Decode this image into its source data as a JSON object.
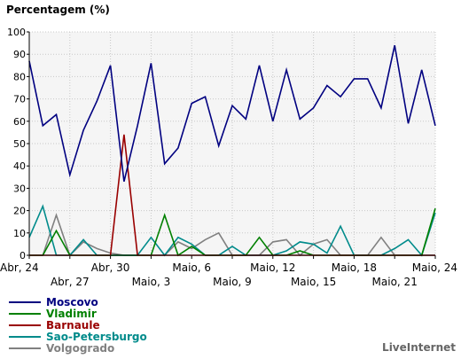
{
  "chart_data": {
    "type": "line",
    "title": "Percentagem (%)",
    "xlabel": "",
    "ylabel": "",
    "ylim": [
      0,
      100
    ],
    "yticks": [
      0,
      10,
      20,
      30,
      40,
      50,
      60,
      70,
      80,
      90,
      100
    ],
    "grid": true,
    "legend_position": "bottom-left",
    "x": [
      "Abr, 24",
      "Abr, 25",
      "Abr, 26",
      "Abr, 27",
      "Abr, 28",
      "Abr, 29",
      "Abr, 30",
      "Maio, 1",
      "Maio, 2",
      "Maio, 3",
      "Maio, 4",
      "Maio, 5",
      "Maio, 6",
      "Maio, 7",
      "Maio, 8",
      "Maio, 9",
      "Maio, 10",
      "Maio, 11",
      "Maio, 12",
      "Maio, 13",
      "Maio, 14",
      "Maio, 15",
      "Maio, 16",
      "Maio, 17",
      "Maio, 18",
      "Maio, 19",
      "Maio, 20",
      "Maio, 21",
      "Maio, 22",
      "Maio, 23",
      "Maio, 24"
    ],
    "xtick_labels": [
      {
        "label": "Abr, 24",
        "index": 0,
        "row": 0
      },
      {
        "label": "Abr, 27",
        "index": 3,
        "row": 1
      },
      {
        "label": "Abr, 30",
        "index": 6,
        "row": 0
      },
      {
        "label": "Maio, 3",
        "index": 9,
        "row": 1
      },
      {
        "label": "Maio, 6",
        "index": 12,
        "row": 0
      },
      {
        "label": "Maio, 9",
        "index": 15,
        "row": 1
      },
      {
        "label": "Maio, 12",
        "index": 18,
        "row": 0
      },
      {
        "label": "Maio, 15",
        "index": 21,
        "row": 1
      },
      {
        "label": "Maio, 18",
        "index": 24,
        "row": 0
      },
      {
        "label": "Maio, 21",
        "index": 27,
        "row": 1
      },
      {
        "label": "Maio, 24",
        "index": 30,
        "row": 0
      }
    ],
    "series": [
      {
        "name": "Moscovo",
        "color": "#000080",
        "values": [
          87,
          58,
          63,
          36,
          56,
          69,
          85,
          33,
          58,
          86,
          41,
          48,
          68,
          71,
          49,
          67,
          61,
          85,
          60,
          83,
          61,
          66,
          76,
          71,
          79,
          79,
          66,
          94,
          59,
          83,
          58
        ]
      },
      {
        "name": "Vladimir",
        "color": "#008000",
        "values": [
          0,
          0,
          11,
          0,
          0,
          0,
          0,
          0,
          0,
          0,
          18,
          0,
          4,
          0,
          0,
          0,
          0,
          8,
          0,
          0,
          2,
          0,
          0,
          0,
          0,
          0,
          0,
          0,
          0,
          0,
          21
        ]
      },
      {
        "name": "Barnaule",
        "color": "#990000",
        "values": [
          0,
          0,
          0,
          0,
          0,
          0,
          0,
          54,
          0,
          0,
          0,
          0,
          0,
          0,
          0,
          0,
          0,
          0,
          0,
          0,
          0,
          0,
          0,
          0,
          0,
          0,
          0,
          0,
          0,
          0,
          0
        ]
      },
      {
        "name": "Sao-Petersburgo",
        "color": "#008B8B",
        "values": [
          8,
          22,
          0,
          0,
          7,
          0,
          0,
          0,
          0,
          8,
          0,
          8,
          5,
          0,
          0,
          4,
          0,
          0,
          0,
          2,
          6,
          5,
          1,
          13,
          0,
          0,
          0,
          3,
          7,
          0,
          19
        ]
      },
      {
        "name": "Volgogrado",
        "color": "#808080",
        "values": [
          0,
          0,
          18,
          0,
          6,
          3,
          1,
          0,
          0,
          0,
          0,
          6,
          3,
          7,
          10,
          0,
          0,
          0,
          6,
          7,
          0,
          5,
          7,
          0,
          0,
          0,
          8,
          0,
          0,
          0,
          0
        ]
      }
    ]
  },
  "credit": "LiveInternet"
}
